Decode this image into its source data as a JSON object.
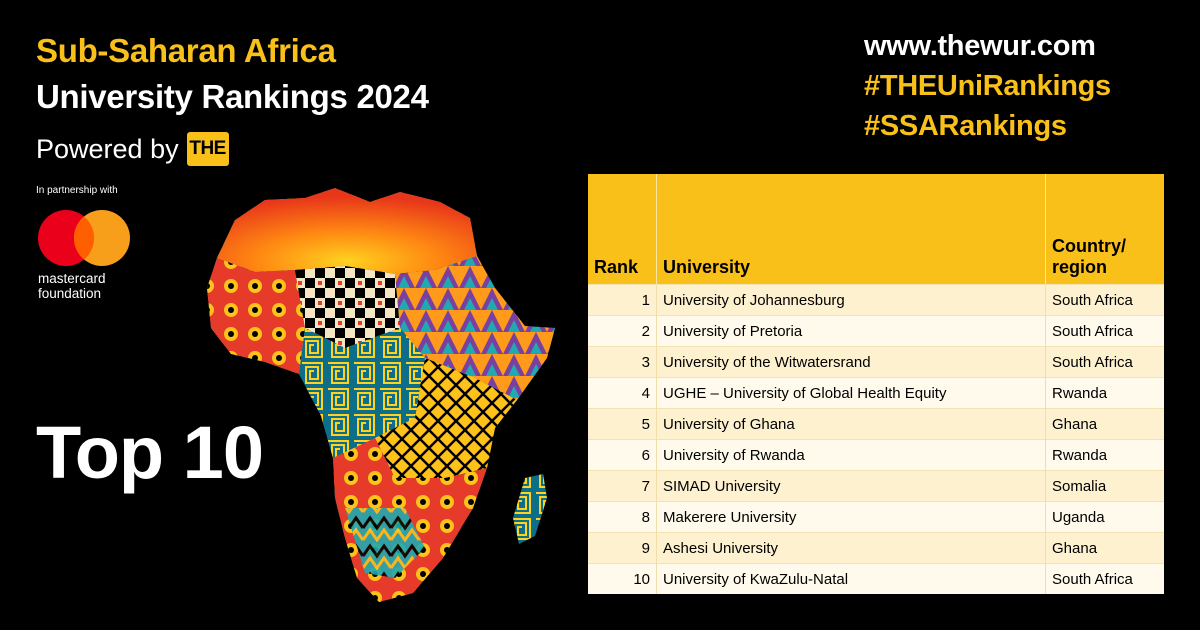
{
  "header": {
    "title_line1": "Sub-Saharan Africa",
    "title_line2": "University Rankings 2024",
    "powered_by": "Powered by",
    "the_logo": "THE",
    "partnership": "In partnership with",
    "partner_name_line1": "mastercard",
    "partner_name_line2": "foundation"
  },
  "headline": "Top 10",
  "links": {
    "website": "www.thewur.com",
    "hashtag1": "#THEUniRankings",
    "hashtag2": "#SSARankings"
  },
  "colors": {
    "accent": "#f9c01a",
    "background": "#000000",
    "mastercard_red": "#eb001b",
    "mastercard_orange": "#f79e1b"
  },
  "table": {
    "headers": {
      "rank": "Rank",
      "university": "University",
      "country": "Country/ region"
    },
    "rows": [
      {
        "rank": "1",
        "university": "University of Johannesburg",
        "country": "South Africa"
      },
      {
        "rank": "2",
        "university": "University of Pretoria",
        "country": "South Africa"
      },
      {
        "rank": "3",
        "university": "University of the Witwatersrand",
        "country": "South Africa"
      },
      {
        "rank": "4",
        "university": "UGHE – University of Global Health Equity",
        "country": "Rwanda"
      },
      {
        "rank": "5",
        "university": "University of Ghana",
        "country": "Ghana"
      },
      {
        "rank": "6",
        "university": "University of Rwanda",
        "country": "Rwanda"
      },
      {
        "rank": "7",
        "university": "SIMAD University",
        "country": "Somalia"
      },
      {
        "rank": "8",
        "university": "Makerere University",
        "country": "Uganda"
      },
      {
        "rank": "9",
        "university": "Ashesi University",
        "country": "Ghana"
      },
      {
        "rank": "10",
        "university": "University of KwaZulu-Natal",
        "country": "South Africa"
      }
    ]
  }
}
